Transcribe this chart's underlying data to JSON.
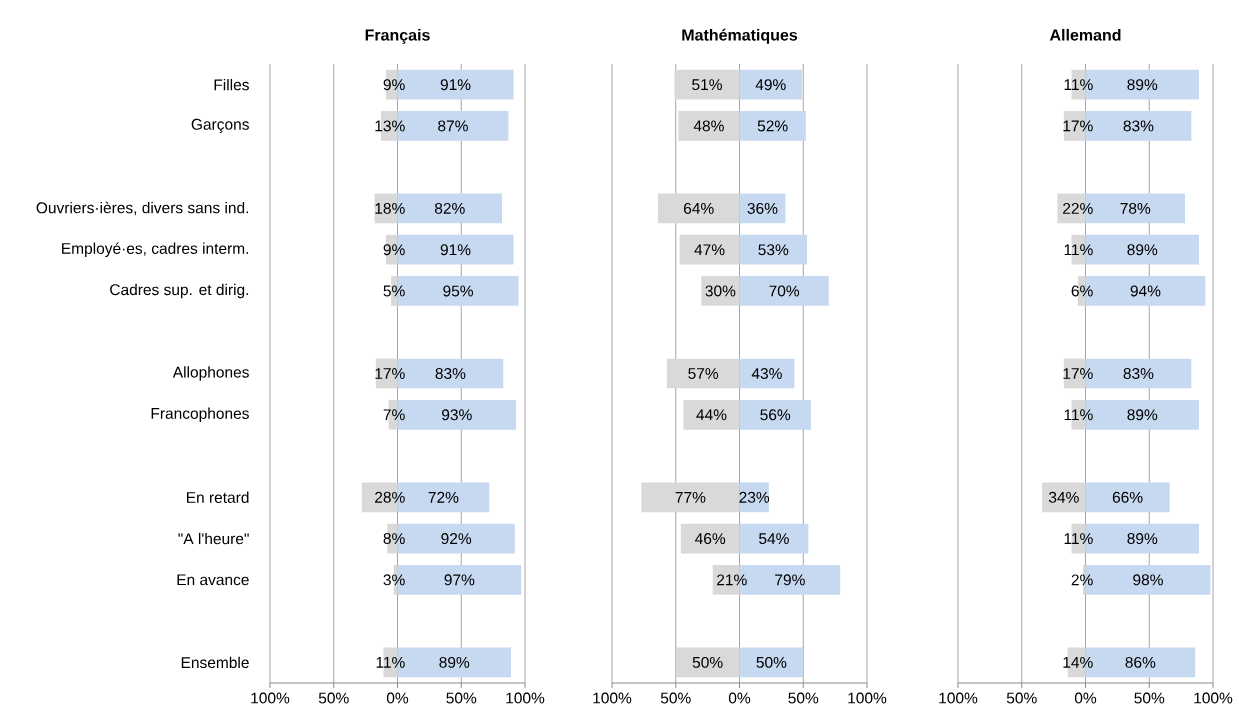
{
  "chart_data": [
    {
      "type": "bar",
      "orientation": "horizontal",
      "stacked": true,
      "title": "Français",
      "grid": "x",
      "categories": [
        "Filles",
        "Garçons",
        null,
        "Ouvriers·ières, divers sans ind.",
        "Employé·es, cadres interm.",
        "Cadres sup. et dirig.",
        null,
        "Allophones",
        "Francophones",
        null,
        "En retard",
        "\"A l'heure\"",
        "En avance",
        null,
        "Ensemble"
      ],
      "series": [
        {
          "color": "#d9d9d9",
          "base": [
            -9,
            -13,
            null,
            -18,
            -9,
            -5,
            null,
            -17,
            -7,
            null,
            -28,
            -8,
            -3,
            null,
            -11
          ],
          "values": [
            9,
            13,
            null,
            18,
            9,
            5,
            null,
            17,
            7,
            null,
            28,
            8,
            3,
            null,
            11
          ],
          "value_labels": [
            "9%",
            "13%",
            null,
            "18%",
            "9%",
            "5%",
            null,
            "17%",
            "7%",
            null,
            "28%",
            "8%",
            "3%",
            null,
            "11%"
          ]
        },
        {
          "color": "#c6d9f1",
          "values": [
            91,
            87,
            null,
            82,
            91,
            95,
            null,
            83,
            93,
            null,
            72,
            92,
            97,
            null,
            89
          ],
          "value_labels": [
            "91%",
            "87%",
            null,
            "82%",
            "91%",
            "95%",
            null,
            "83%",
            "93%",
            null,
            "72%",
            "92%",
            "97%",
            null,
            "89%"
          ]
        }
      ],
      "xlim": [
        -100,
        100
      ],
      "xticks": [
        {
          "value": -100,
          "label": "100%"
        },
        {
          "value": -50,
          "label": "50%"
        },
        {
          "value": 0,
          "label": "0%"
        },
        {
          "value": 50,
          "label": "50%"
        },
        {
          "value": 100,
          "label": "100%"
        }
      ]
    },
    {
      "type": "bar",
      "orientation": "horizontal",
      "stacked": true,
      "title": "Mathématiques",
      "grid": "x",
      "tick_labels": "x",
      "categories": [
        null,
        null,
        null,
        null,
        null,
        null,
        null,
        null,
        null,
        null,
        null,
        null,
        null,
        null,
        null
      ],
      "series": [
        {
          "color": "#d9d9d9",
          "base": [
            -51,
            -48,
            null,
            -64,
            -47,
            -30,
            null,
            -57,
            -44,
            null,
            -77,
            -46,
            -21,
            null,
            -50
          ],
          "values": [
            51,
            48,
            null,
            64,
            47,
            30,
            null,
            57,
            44,
            null,
            77,
            46,
            21,
            null,
            50
          ],
          "value_labels": [
            "51%",
            "48%",
            null,
            "64%",
            "47%",
            "30%",
            null,
            "57%",
            "44%",
            null,
            "77%",
            "46%",
            "21%",
            null,
            "50%"
          ]
        },
        {
          "color": "#c6d9f1",
          "values": [
            49,
            52,
            null,
            36,
            53,
            70,
            null,
            43,
            56,
            null,
            23,
            54,
            79,
            null,
            50
          ],
          "value_labels": [
            "49%",
            "52%",
            null,
            "36%",
            "53%",
            "70%",
            null,
            "43%",
            "56%",
            null,
            "23%",
            "54%",
            "79%",
            null,
            "50%"
          ]
        }
      ],
      "xlim": [
        -100,
        100
      ],
      "xticks": [
        {
          "value": -100,
          "label": "100%"
        },
        {
          "value": -50,
          "label": "50%"
        },
        {
          "value": 0,
          "label": "0%"
        },
        {
          "value": 50,
          "label": "50%"
        },
        {
          "value": 100,
          "label": "100%"
        }
      ]
    },
    {
      "type": "bar",
      "orientation": "horizontal",
      "stacked": true,
      "title": "Allemand",
      "grid": "x",
      "tick_labels": "x",
      "categories": [
        null,
        null,
        null,
        null,
        null,
        null,
        null,
        null,
        null,
        null,
        null,
        null,
        null,
        null,
        null
      ],
      "series": [
        {
          "color": "#d9d9d9",
          "base": [
            -11,
            -17,
            null,
            -22,
            -11,
            -6,
            null,
            -17,
            -11,
            null,
            -34,
            -11,
            -2,
            null,
            -14
          ],
          "values": [
            11,
            17,
            null,
            22,
            11,
            6,
            null,
            17,
            11,
            null,
            34,
            11,
            2,
            null,
            14
          ],
          "value_labels": [
            "11%",
            "17%",
            null,
            "22%",
            "11%",
            "6%",
            null,
            "17%",
            "11%",
            null,
            "34%",
            "11%",
            "2%",
            null,
            "14%"
          ]
        },
        {
          "color": "#c6d9f1",
          "values": [
            89,
            83,
            null,
            78,
            89,
            94,
            null,
            83,
            89,
            null,
            66,
            89,
            98,
            null,
            86
          ],
          "value_labels": [
            "89%",
            "83%",
            null,
            "78%",
            "89%",
            "94%",
            null,
            "83%",
            "89%",
            null,
            "66%",
            "89%",
            "98%",
            null,
            "86%"
          ]
        }
      ],
      "xlim": [
        -100,
        100
      ],
      "xticks": [
        {
          "value": -100,
          "label": "100%"
        },
        {
          "value": -50,
          "label": "50%"
        },
        {
          "value": 0,
          "label": "0%"
        },
        {
          "value": 50,
          "label": "50%"
        },
        {
          "value": 100,
          "label": "100%"
        }
      ]
    }
  ]
}
